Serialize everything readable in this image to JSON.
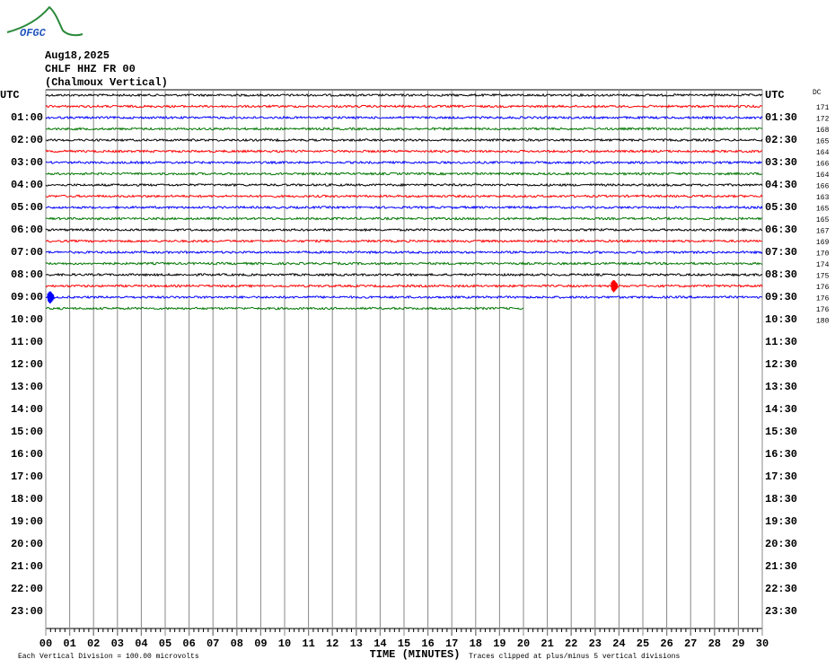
{
  "chart_data": {
    "type": "helicorder",
    "logo": "OFGC",
    "date": "Aug18,2025",
    "station": "CHLF HHZ FR 00",
    "location": "(Chalmoux Vertical)",
    "left_labels": [
      "UTC",
      "01:00",
      "02:00",
      "03:00",
      "04:00",
      "05:00",
      "06:00",
      "07:00",
      "08:00",
      "09:00",
      "10:00",
      "11:00",
      "12:00",
      "13:00",
      "14:00",
      "15:00",
      "16:00",
      "17:00",
      "18:00",
      "19:00",
      "20:00",
      "21:00",
      "22:00",
      "23:00"
    ],
    "right_labels": [
      "UTC",
      "01:30",
      "02:30",
      "03:30",
      "04:30",
      "05:30",
      "06:30",
      "07:30",
      "08:30",
      "09:30",
      "10:30",
      "11:30",
      "12:30",
      "13:30",
      "14:30",
      "15:30",
      "16:30",
      "17:30",
      "18:30",
      "19:30",
      "20:30",
      "21:30",
      "22:30",
      "23:30"
    ],
    "dc_label": "DC",
    "traces": [
      {
        "color": "#000000",
        "dc": 171,
        "end": 30
      },
      {
        "color": "#ff0000",
        "dc": 172,
        "end": 30
      },
      {
        "color": "#0000ff",
        "dc": 168,
        "end": 30
      },
      {
        "color": "#007700",
        "dc": 165,
        "end": 30
      },
      {
        "color": "#000000",
        "dc": 164,
        "end": 30
      },
      {
        "color": "#ff0000",
        "dc": 166,
        "end": 30
      },
      {
        "color": "#0000ff",
        "dc": 164,
        "end": 30
      },
      {
        "color": "#007700",
        "dc": 166,
        "end": 30
      },
      {
        "color": "#000000",
        "dc": 163,
        "end": 30
      },
      {
        "color": "#ff0000",
        "dc": 165,
        "end": 30
      },
      {
        "color": "#0000ff",
        "dc": 165,
        "end": 30
      },
      {
        "color": "#007700",
        "dc": 167,
        "end": 30
      },
      {
        "color": "#000000",
        "dc": 169,
        "end": 30
      },
      {
        "color": "#ff0000",
        "dc": 170,
        "end": 30
      },
      {
        "color": "#0000ff",
        "dc": 174,
        "end": 30
      },
      {
        "color": "#007700",
        "dc": 175,
        "end": 30
      },
      {
        "color": "#000000",
        "dc": 176,
        "end": 30
      },
      {
        "color": "#ff0000",
        "dc": 176,
        "end": 30
      },
      {
        "color": "#0000ff",
        "dc": 176,
        "end": 30
      },
      {
        "color": "#007700",
        "dc": 180,
        "end": 20
      }
    ],
    "events": [
      {
        "trace": 18,
        "minute": 0.2
      },
      {
        "trace": 17,
        "minute": 23.8
      }
    ],
    "xlim": [
      0,
      30
    ],
    "xticks": [
      {
        "value": 0,
        "label": "00"
      },
      {
        "value": 1,
        "label": "01"
      },
      {
        "value": 2,
        "label": "02"
      },
      {
        "value": 3,
        "label": "03"
      },
      {
        "value": 4,
        "label": "04"
      },
      {
        "value": 5,
        "label": "05"
      },
      {
        "value": 6,
        "label": "06"
      },
      {
        "value": 7,
        "label": "07"
      },
      {
        "value": 8,
        "label": "08"
      },
      {
        "value": 9,
        "label": "09"
      },
      10,
      11,
      12,
      13,
      14,
      15,
      16,
      17,
      18,
      19,
      20,
      21,
      22,
      23,
      24,
      25,
      26,
      27,
      28,
      29,
      30
    ],
    "xlabel": "TIME (MINUTES)",
    "footer_left": "Each Vertical Division =  100.00 microvolts",
    "footer_right": "Traces clipped at plus/minus 5 vertical divisions"
  }
}
